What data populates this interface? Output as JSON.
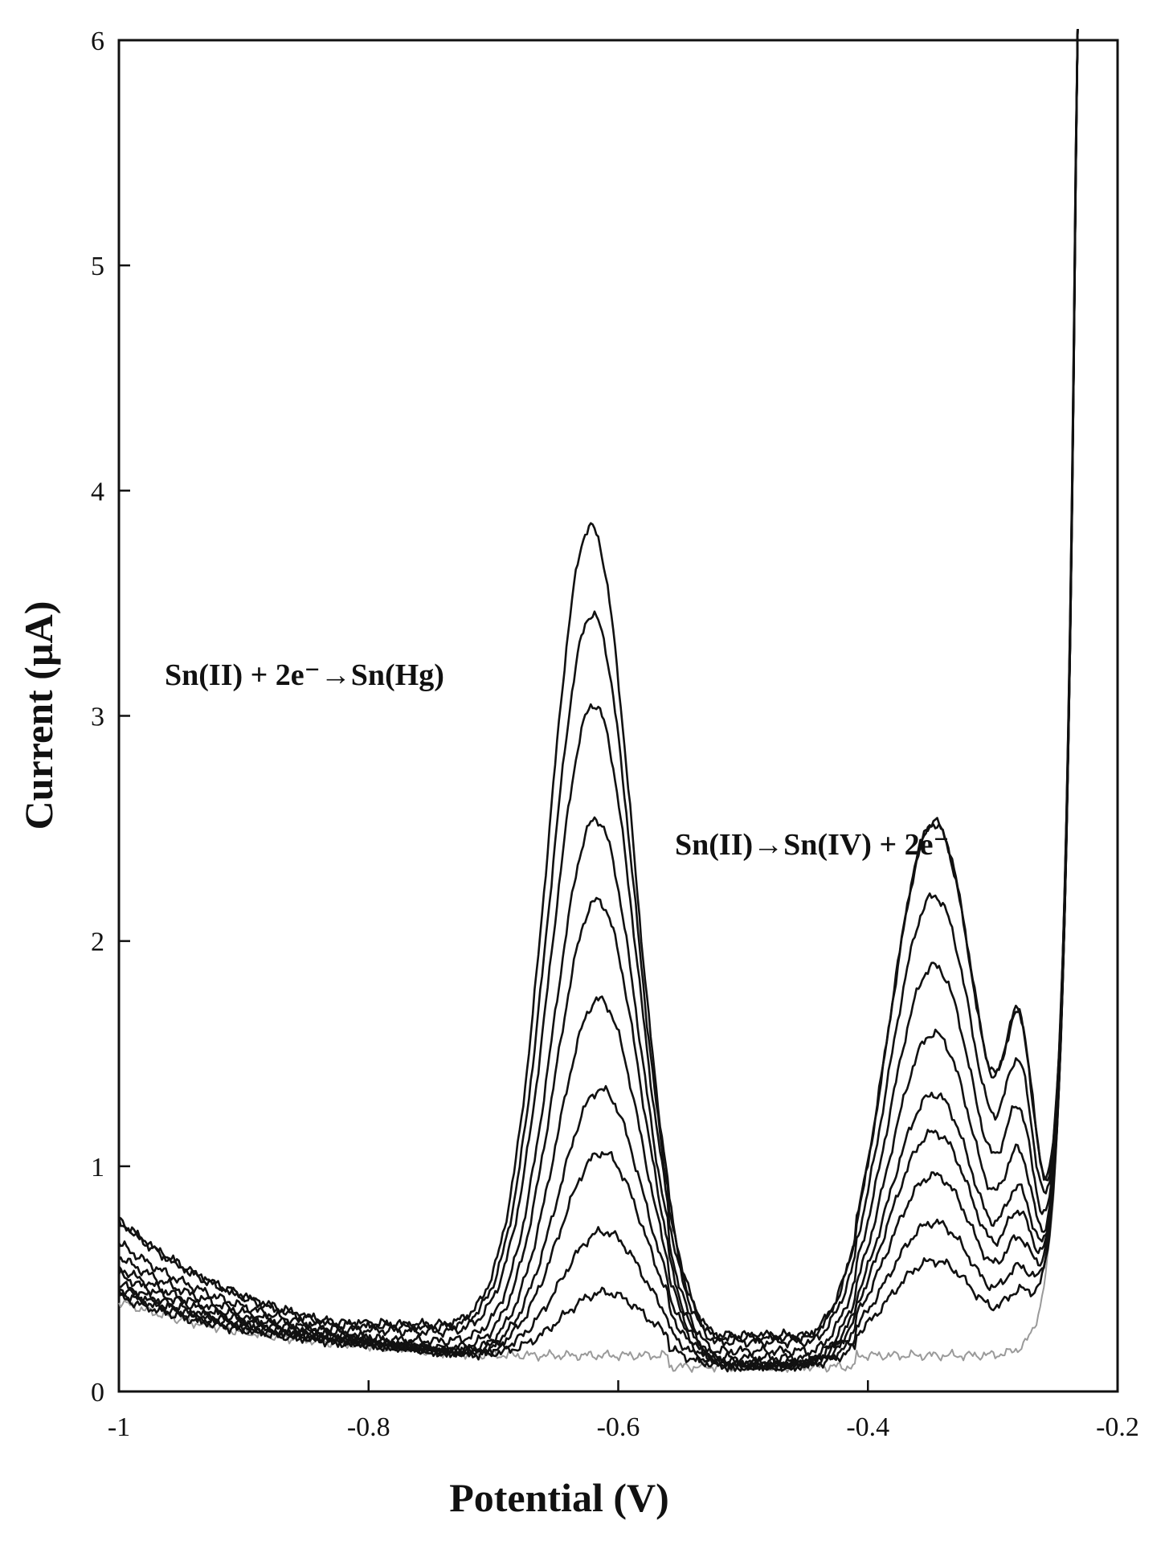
{
  "chart_data": {
    "type": "line",
    "title": "",
    "xlabel": "Potential (V)",
    "ylabel": "Current (µA)",
    "xlim": [
      -1,
      -0.2
    ],
    "ylim": [
      0,
      6
    ],
    "x_ticks": [
      -1,
      -0.8,
      -0.6,
      -0.4,
      -0.2
    ],
    "y_ticks": [
      0,
      1,
      2,
      3,
      4,
      5,
      6
    ],
    "x_tick_labels": [
      "-1",
      "-0.8",
      "-0.6",
      "-0.4",
      "-0.2"
    ],
    "y_tick_labels": [
      "0",
      "1",
      "2",
      "3",
      "4",
      "5",
      "6"
    ],
    "grid": false,
    "legend": "none",
    "line_color": "#111111",
    "blank_color": "#9a9a9a",
    "annotations": [
      {
        "text": "Sn(II) + 2e⁻→Sn(Hg)",
        "x": -0.8,
        "y": 3.2
      },
      {
        "text": "Sn(II)→Sn(IV) + 2e⁻",
        "x": -0.4,
        "y": 2.45
      }
    ],
    "series": [
      {
        "color": "#9a9a9a",
        "peak1": 0.0,
        "peak2": 0.0,
        "min": 0.08,
        "left_start": 0.4
      },
      {
        "color": "#111111",
        "peak1": 0.28,
        "peak2": 0.42,
        "min": 0.09,
        "left_start": 0.42
      },
      {
        "color": "#111111",
        "peak1": 0.55,
        "peak2": 0.59,
        "min": 0.1,
        "left_start": 0.44
      },
      {
        "color": "#111111",
        "peak1": 0.9,
        "peak2": 0.8,
        "min": 0.11,
        "left_start": 0.46
      },
      {
        "color": "#111111",
        "peak1": 1.18,
        "peak2": 0.99,
        "min": 0.12,
        "left_start": 0.48
      },
      {
        "color": "#111111",
        "peak1": 1.58,
        "peak2": 1.16,
        "min": 0.13,
        "left_start": 0.52
      },
      {
        "color": "#111111",
        "peak1": 2.02,
        "peak2": 1.43,
        "min": 0.15,
        "left_start": 0.55
      },
      {
        "color": "#111111",
        "peak1": 2.35,
        "peak2": 1.71,
        "min": 0.18,
        "left_start": 0.6
      },
      {
        "color": "#111111",
        "peak1": 2.82,
        "peak2": 1.98,
        "min": 0.22,
        "left_start": 0.66
      },
      {
        "color": "#111111",
        "peak1": 3.2,
        "peak2": 2.28,
        "min": 0.24,
        "left_start": 0.76
      },
      {
        "color": "#111111",
        "peak1": 3.58,
        "peak2": 2.28,
        "min": 0.25,
        "left_start": 0.76
      }
    ]
  }
}
